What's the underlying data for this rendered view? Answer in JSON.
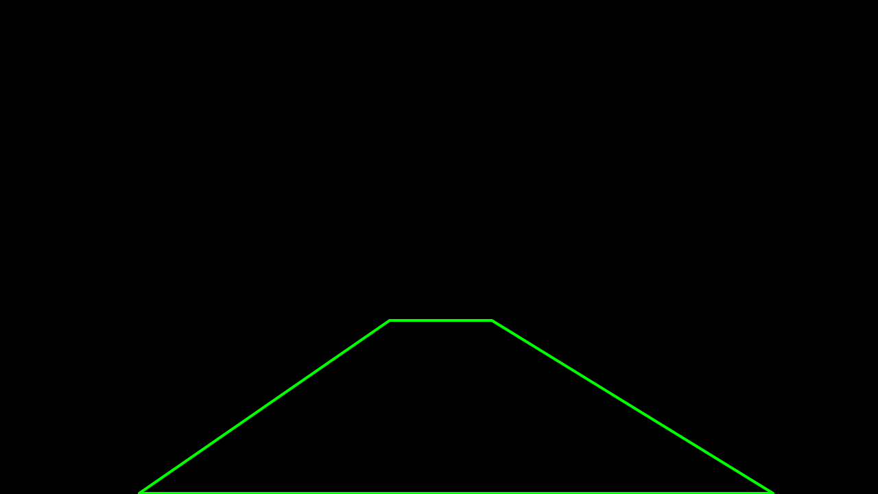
{
  "scene": {
    "description_visible_text": "",
    "background_color": "#000000",
    "overlay": {
      "shape": "trapezoid-outline",
      "stroke_color": "#00ff00",
      "label": ""
    }
  }
}
